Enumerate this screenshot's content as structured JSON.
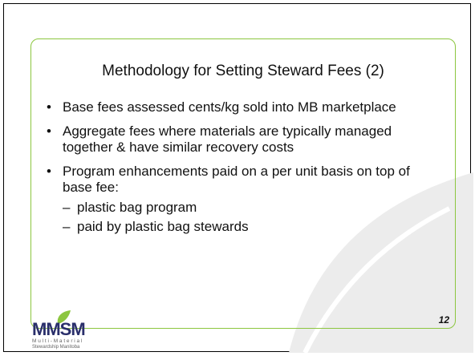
{
  "slide": {
    "title": "Methodology for Setting Steward Fees (2)",
    "bullets": [
      {
        "text": "Base fees assessed cents/kg sold into MB marketplace"
      },
      {
        "text": "Aggregate fees where materials are typically managed together & have similar recovery costs"
      },
      {
        "text": "Program enhancements paid on a per unit basis on top of base fee:",
        "sub": [
          "plastic bag program",
          "paid by plastic bag stewards"
        ]
      }
    ],
    "logo": {
      "name": "MMSM",
      "line1": "Multi-Material",
      "line2": "Stewardship Manitoba"
    },
    "page_number": "12"
  }
}
